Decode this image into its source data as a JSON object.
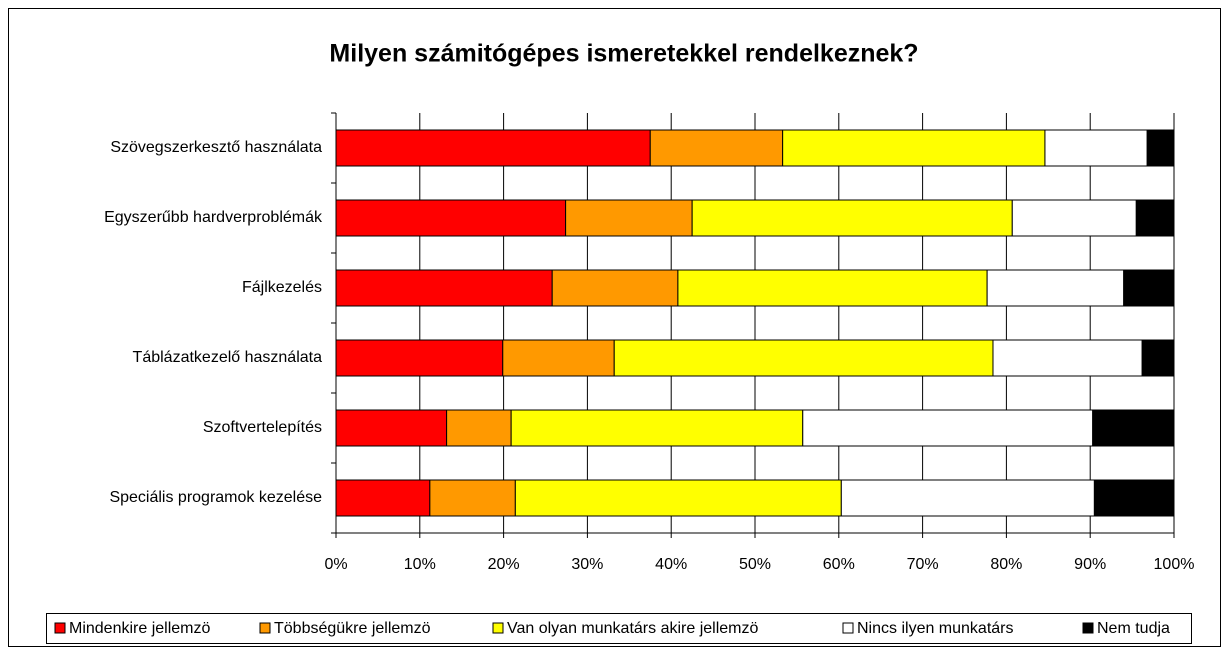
{
  "chart_data": {
    "type": "stacked_barh",
    "title": "Milyen számitógépes ismeretekkel rendelkeznek?",
    "categories": [
      "Szövegszerkesztő használata",
      "Egyszerűbb hardverproblémák",
      "Fájlkezelés",
      "Táblázatkezelő használata",
      "Szoftvertelepítés",
      "Speciális programok kezelése"
    ],
    "series": [
      {
        "name": "Mindenkire jellemzö",
        "color": "#ff0000",
        "values": [
          37.5,
          27.4,
          25.8,
          19.9,
          13.2,
          11.2
        ]
      },
      {
        "name": "Többségükre jellemzö",
        "color": "#ff9900",
        "values": [
          15.8,
          15.1,
          15.0,
          13.3,
          7.7,
          10.2
        ]
      },
      {
        "name": "Van olyan munkatárs akire jellemzö",
        "color": "#ffff00",
        "values": [
          31.3,
          38.2,
          36.9,
          45.2,
          34.8,
          38.9
        ]
      },
      {
        "name": "Nincs ilyen munkatárs",
        "color": "#ffffff",
        "values": [
          12.2,
          14.8,
          16.3,
          17.8,
          34.6,
          30.2
        ]
      },
      {
        "name": "Nem tudja",
        "color": "#000000",
        "values": [
          3.2,
          4.5,
          6.0,
          3.8,
          9.7,
          9.5
        ]
      }
    ],
    "xlim": [
      0,
      100
    ],
    "xticks": [
      {
        "value": 0,
        "label": "0%"
      },
      {
        "value": 10,
        "label": "10%"
      },
      {
        "value": 20,
        "label": "20%"
      },
      {
        "value": 30,
        "label": "30%"
      },
      {
        "value": 40,
        "label": "40%"
      },
      {
        "value": 50,
        "label": "50%"
      },
      {
        "value": 60,
        "label": "60%"
      },
      {
        "value": 70,
        "label": "70%"
      },
      {
        "value": 80,
        "label": "80%"
      },
      {
        "value": 90,
        "label": "90%"
      },
      {
        "value": 100,
        "label": "100%"
      }
    ],
    "grid": true,
    "legend": "bottom"
  }
}
